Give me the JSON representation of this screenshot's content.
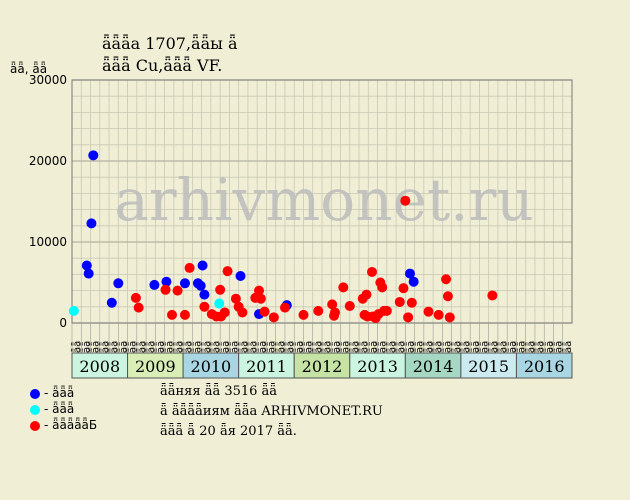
{
  "header": {
    "title_line1": "ǟǟǟа 1707,ǟǟы ǟ",
    "title_line2": "ǟǟǟ Cu,ǟǟǟ VF."
  },
  "watermark": "arhivmonet.ru",
  "legend": [
    {
      "label": "- ǟǟǟ",
      "color": "#0000ff"
    },
    {
      "label": "- ǟǟǟ",
      "color": "#00ffff"
    },
    {
      "label": "- ǟǟǟǟǟБ",
      "color": "#ff0000"
    }
  ],
  "notes": {
    "line1": "ǟǟняя ǟǟ 3516 ǟǟ",
    "line2": "ǟ ǟǟǟǟиям ǟǟа ARHIVMONET.RU",
    "line3": "ǟǟǟ ǟ 20 ǟя 2017 ǟǟ."
  },
  "chart_data": {
    "type": "scatter",
    "ylabel": "ǟǟ, ǟǟ",
    "ylim": [
      0,
      30000
    ],
    "yticks": [
      0,
      10000,
      20000,
      30000
    ],
    "grid": true,
    "month_labels": [
      "ǟǟ",
      "ǟǟ",
      "ǟǟ",
      "ǟǟ",
      "ǟǟ",
      "ǟǟ",
      "ǟǟ",
      "ǟǟ",
      "ǟǟ",
      "ǟǟ",
      "ǟǟ",
      "ǟǟ",
      "ǟǟ",
      "ǟǟ",
      "ǟǟ",
      "ǟǟ",
      "ǟǟ",
      "ǟǟ",
      "ǟǟ",
      "ǟǟ",
      "ǟǟ",
      "ǟǟ",
      "ǟǟ",
      "ǟǟ",
      "ǟǟ",
      "ǟǟ",
      "ǟǟ",
      "ǟǟ",
      "ǟǟ",
      "ǟǟ",
      "ǟǟ",
      "ǟǟ",
      "ǟǟ",
      "ǟǟ",
      "ǟǟ",
      "ǟǟ",
      "ǟǟ",
      "ǟǟ",
      "ǟǟ",
      "ǟǟ",
      "ǟǟ",
      "ǟǟ",
      "ǟǟ",
      "ǟǟ",
      "ǟǟ",
      "ǟǟ",
      "ǟǟ",
      "ǟǟ",
      "ǟǟ",
      "ǟǟ",
      "ǟǟ",
      "ǟǟ",
      "ǟǟ",
      "ǟǟ"
    ],
    "years": [
      {
        "label": "2008",
        "start": 0,
        "span": 6,
        "color": "#ccf5e1"
      },
      {
        "label": "2009",
        "start": 6,
        "span": 6,
        "color": "#d9edb7"
      },
      {
        "label": "2010",
        "start": 12,
        "span": 6,
        "color": "#a9d6e3"
      },
      {
        "label": "2011",
        "start": 18,
        "span": 6,
        "color": "#ccf5e1"
      },
      {
        "label": "2012",
        "start": 24,
        "span": 6,
        "color": "#c5e3a4"
      },
      {
        "label": "2013",
        "start": 30,
        "span": 6,
        "color": "#ccf5e1"
      },
      {
        "label": "2014",
        "start": 36,
        "span": 6,
        "color": "#a6d7c2"
      },
      {
        "label": "2015",
        "start": 42,
        "span": 6,
        "color": "#ccebf0"
      },
      {
        "label": "2016",
        "start": 48,
        "span": 6,
        "color": "#a9d6e3"
      }
    ],
    "series": [
      {
        "name": "- ǟǟǟ",
        "color": "#0000ff",
        "points": [
          [
            1.6,
            7100
          ],
          [
            1.8,
            6100
          ],
          [
            2.1,
            12300
          ],
          [
            2.3,
            20700
          ],
          [
            4.3,
            2500
          ],
          [
            5.0,
            4900
          ],
          [
            8.9,
            4700
          ],
          [
            10.2,
            5100
          ],
          [
            12.2,
            4900
          ],
          [
            13.6,
            4900
          ],
          [
            13.9,
            4600
          ],
          [
            14.1,
            7100
          ],
          [
            14.3,
            3500
          ],
          [
            18.2,
            5800
          ],
          [
            20.2,
            1100
          ],
          [
            23.2,
            2200
          ],
          [
            36.5,
            6100
          ],
          [
            36.9,
            5100
          ]
        ]
      },
      {
        "name": "- ǟǟǟ",
        "color": "#00ffff",
        "points": [
          [
            0.2,
            1500
          ],
          [
            15.9,
            2400
          ]
        ]
      },
      {
        "name": "- ǟǟǟǟǟБ",
        "color": "#ff0000",
        "points": [
          [
            6.9,
            3100
          ],
          [
            7.2,
            1900
          ],
          [
            10.1,
            4100
          ],
          [
            10.8,
            1000
          ],
          [
            11.4,
            4000
          ],
          [
            12.2,
            1000
          ],
          [
            12.7,
            6800
          ],
          [
            14.3,
            2000
          ],
          [
            15.1,
            1100
          ],
          [
            15.6,
            800
          ],
          [
            16.0,
            4100
          ],
          [
            16.1,
            800
          ],
          [
            16.5,
            1300
          ],
          [
            16.8,
            6400
          ],
          [
            17.7,
            3000
          ],
          [
            18.0,
            2000
          ],
          [
            18.4,
            1300
          ],
          [
            19.8,
            3100
          ],
          [
            20.2,
            4000
          ],
          [
            20.4,
            3000
          ],
          [
            20.8,
            1400
          ],
          [
            21.8,
            700
          ],
          [
            23.0,
            1900
          ],
          [
            25.0,
            1000
          ],
          [
            26.6,
            1500
          ],
          [
            28.1,
            2300
          ],
          [
            28.3,
            900
          ],
          [
            28.4,
            1300
          ],
          [
            29.3,
            4400
          ],
          [
            30.0,
            2100
          ],
          [
            31.4,
            3000
          ],
          [
            31.6,
            1000
          ],
          [
            31.8,
            3500
          ],
          [
            31.9,
            800
          ],
          [
            32.4,
            6300
          ],
          [
            32.5,
            800
          ],
          [
            32.8,
            600
          ],
          [
            33.1,
            1100
          ],
          [
            33.3,
            5000
          ],
          [
            33.5,
            4400
          ],
          [
            33.7,
            1500
          ],
          [
            34.0,
            1500
          ],
          [
            35.4,
            2600
          ],
          [
            35.8,
            4300
          ],
          [
            36.0,
            15100
          ],
          [
            36.3,
            700
          ],
          [
            36.7,
            2500
          ],
          [
            38.5,
            1400
          ],
          [
            39.6,
            1000
          ],
          [
            40.4,
            5400
          ],
          [
            40.6,
            3300
          ],
          [
            40.8,
            700
          ],
          [
            45.4,
            3400
          ]
        ]
      }
    ]
  }
}
